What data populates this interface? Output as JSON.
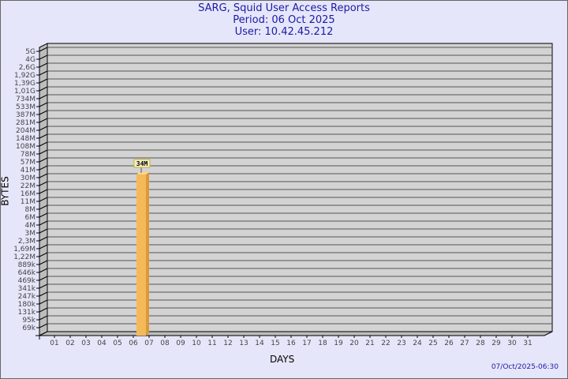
{
  "chart_data": {
    "type": "bar",
    "title": "SARG, Squid User Access Reports",
    "subtitle": [
      "Period: 06 Oct 2025",
      "User: 10.42.45.212"
    ],
    "xlabel": "DAYS",
    "ylabel": "BYTES",
    "y_scale": "log",
    "y_ticks": [
      "5G",
      "4G",
      "2,6G",
      "1,92G",
      "1,39G",
      "1,01G",
      "734M",
      "533M",
      "387M",
      "281M",
      "204M",
      "148M",
      "108M",
      "78M",
      "57M",
      "41M",
      "30M",
      "22M",
      "16M",
      "11M",
      "8M",
      "6M",
      "4M",
      "3M",
      "2,3M",
      "1,69M",
      "1,22M",
      "889k",
      "646k",
      "469k",
      "341k",
      "247k",
      "180k",
      "131k",
      "95k",
      "69k"
    ],
    "categories": [
      "01",
      "02",
      "03",
      "04",
      "05",
      "06",
      "07",
      "08",
      "09",
      "10",
      "11",
      "12",
      "13",
      "14",
      "15",
      "16",
      "17",
      "18",
      "19",
      "20",
      "21",
      "22",
      "23",
      "24",
      "25",
      "26",
      "27",
      "28",
      "29",
      "30",
      "31"
    ],
    "bars": [
      {
        "day": "06",
        "value": 34000000,
        "label": "34M"
      }
    ],
    "grid": true,
    "colors": {
      "bar": "#f5b95a",
      "bar_side": "#d99a3a",
      "plot": "#d3d3d3",
      "background": "#e6e6fa",
      "title": "#1a1aa6"
    }
  },
  "footer": "07/Oct/2025-06:30"
}
